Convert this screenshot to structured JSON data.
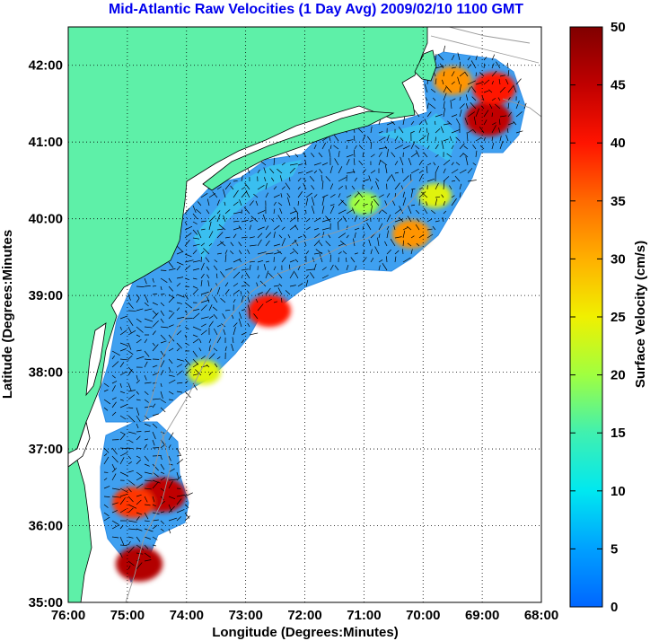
{
  "title": "Mid-Atlantic Raw Velocities (1 Day Avg) 2009/02/10 1100 GMT",
  "map": {
    "xlabel": "Longitude (Degrees:Minutes)",
    "ylabel": "Latitude (Degrees:Minutes",
    "lon_range": [
      -76,
      -68
    ],
    "lat_range": [
      35,
      42.5
    ],
    "x_ticks": [
      {
        "value": -76,
        "label": "76:00"
      },
      {
        "value": -75,
        "label": "75:00"
      },
      {
        "value": -74,
        "label": "74:00"
      },
      {
        "value": -73,
        "label": "73:00"
      },
      {
        "value": -72,
        "label": "72:00"
      },
      {
        "value": -71,
        "label": "71:00"
      },
      {
        "value": -70,
        "label": "70:00"
      },
      {
        "value": -69,
        "label": "69:00"
      },
      {
        "value": -68,
        "label": "68:00"
      }
    ],
    "y_ticks": [
      {
        "value": 35,
        "label": "35:00"
      },
      {
        "value": 36,
        "label": "36:00"
      },
      {
        "value": 37,
        "label": "37:00"
      },
      {
        "value": 38,
        "label": "38:00"
      },
      {
        "value": 39,
        "label": "39:00"
      },
      {
        "value": 40,
        "label": "40:00"
      },
      {
        "value": 41,
        "label": "41:00"
      },
      {
        "value": 42,
        "label": "42:00"
      }
    ],
    "grid": "dotted",
    "land_color": "#5ef0a8",
    "hotspots": [
      {
        "lon": -68.9,
        "lat": 41.3,
        "speed": 45
      },
      {
        "lon": -68.8,
        "lat": 41.7,
        "speed": 40
      },
      {
        "lon": -69.5,
        "lat": 41.8,
        "speed": 32
      },
      {
        "lon": -70.2,
        "lat": 39.8,
        "speed": 32
      },
      {
        "lon": -69.8,
        "lat": 40.3,
        "speed": 24
      },
      {
        "lon": -72.6,
        "lat": 38.8,
        "speed": 40
      },
      {
        "lon": -74.4,
        "lat": 36.4,
        "speed": 45
      },
      {
        "lon": -74.8,
        "lat": 35.5,
        "speed": 46
      },
      {
        "lon": -74.9,
        "lat": 36.3,
        "speed": 38
      },
      {
        "lon": -73.7,
        "lat": 38.0,
        "speed": 24
      },
      {
        "lon": -71.0,
        "lat": 40.2,
        "speed": 20
      }
    ]
  },
  "colorbar": {
    "label": "Surface Velocity (cm/s)",
    "min": 0,
    "max": 50,
    "ticks": [
      0,
      5,
      10,
      15,
      20,
      25,
      30,
      35,
      40,
      45,
      50
    ],
    "colors": [
      "#0066ff",
      "#00a0ff",
      "#00e8f0",
      "#40f0b0",
      "#a0ff40",
      "#f0f000",
      "#ffb000",
      "#ff6a00",
      "#ff1400",
      "#c00000",
      "#800000"
    ]
  }
}
